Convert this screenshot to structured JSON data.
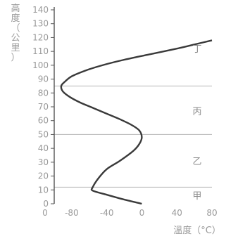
{
  "chart_data": {
    "type": "line",
    "ylabel": "高度（公里）",
    "xlabel": "溫度（°C）",
    "xlim": [
      -100,
      80
    ],
    "ylim": [
      0,
      140
    ],
    "x_ticks": [
      "-80",
      "-40",
      "0",
      "40",
      "80"
    ],
    "x_tick_values": [
      -80,
      -40,
      0,
      40,
      80
    ],
    "y_ticks": [
      "0",
      "10",
      "20",
      "30",
      "40",
      "50",
      "60",
      "70",
      "80",
      "90",
      "100",
      "110",
      "120",
      "130",
      "140"
    ],
    "y_tick_values": [
      0,
      10,
      20,
      30,
      40,
      50,
      60,
      70,
      80,
      90,
      100,
      110,
      120,
      130,
      140
    ],
    "layer_boundaries": [
      12,
      50,
      85
    ],
    "layers": [
      {
        "label": "甲",
        "y": 6
      },
      {
        "label": "乙",
        "y": 31
      },
      {
        "label": "丙",
        "y": 67
      },
      {
        "label": "丁",
        "y": 112
      }
    ],
    "series": [
      {
        "x": [
          0,
          -20,
          -40,
          -56,
          -56,
          -50,
          -40,
          -25,
          -10,
          -3,
          0,
          -3,
          -12,
          -25,
          -40,
          -55,
          -70,
          -82,
          -90,
          -92,
          -88,
          -80,
          -65,
          -45,
          -20,
          10,
          40,
          60,
          80
        ],
        "y": [
          0,
          3,
          6.5,
          9.5,
          12,
          18,
          25,
          31,
          38,
          43,
          48,
          53,
          57,
          61,
          65,
          69,
          73,
          77,
          81,
          85,
          88,
          92,
          96,
          100,
          104,
          108,
          112,
          115,
          118
        ]
      }
    ]
  }
}
